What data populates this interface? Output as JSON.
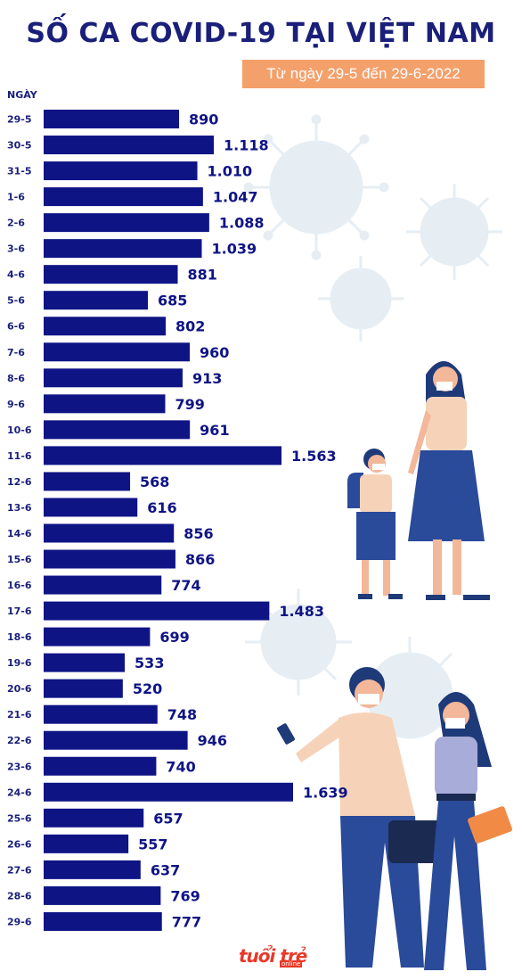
{
  "title": "SỐ CA COVID-19 TẠI VIỆT NAM",
  "subtitle": "Từ ngày 29-5 đến 29-6-2022",
  "axis_label": "NGÀY",
  "logo_text": "tuổi trẻ",
  "logo_sub": "online",
  "colors": {
    "bar": "#0f1485",
    "title": "#1a1f7a",
    "subtitle_bg": "#f4a06b",
    "decor": "#e8f0f5"
  },
  "chart_data": {
    "type": "bar",
    "orientation": "horizontal",
    "categories": [
      "29-5",
      "30-5",
      "31-5",
      "1-6",
      "2-6",
      "3-6",
      "4-6",
      "5-6",
      "6-6",
      "7-6",
      "8-6",
      "9-6",
      "10-6",
      "11-6",
      "12-6",
      "13-6",
      "14-6",
      "15-6",
      "16-6",
      "17-6",
      "18-6",
      "19-6",
      "20-6",
      "21-6",
      "22-6",
      "23-6",
      "24-6",
      "25-6",
      "26-6",
      "27-6",
      "28-6",
      "29-6"
    ],
    "values": [
      890,
      1118,
      1010,
      1047,
      1088,
      1039,
      881,
      685,
      802,
      960,
      913,
      799,
      961,
      1563,
      568,
      616,
      856,
      866,
      774,
      1483,
      699,
      533,
      520,
      748,
      946,
      740,
      1639,
      657,
      557,
      637,
      769,
      777
    ],
    "value_labels": [
      "890",
      "1.118",
      "1.010",
      "1.047",
      "1.088",
      "1.039",
      "881",
      "685",
      "802",
      "960",
      "913",
      "799",
      "961",
      "1.563",
      "568",
      "616",
      "856",
      "866",
      "774",
      "1.483",
      "699",
      "533",
      "520",
      "748",
      "946",
      "740",
      "1.639",
      "657",
      "557",
      "637",
      "769",
      "777"
    ],
    "title": "SỐ CA COVID-19 TẠI VIỆT NAM",
    "ylabel": "NGÀY",
    "grid": false,
    "legend": "none"
  }
}
